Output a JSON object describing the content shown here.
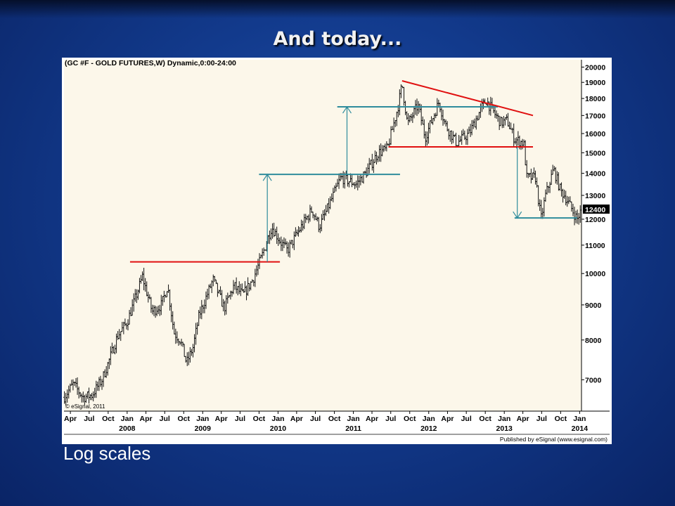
{
  "slide": {
    "title": "And today...",
    "caption": "Log scales"
  },
  "colors": {
    "background": "#123a8c",
    "plot_bg": "#fcf7ea",
    "axis_bg": "#ffffff",
    "bars": "#111111",
    "support_resistance": "#e01010",
    "measured_move": "#2e8c9c"
  },
  "chart_data": {
    "type": "ohlc-bar",
    "title": "(GC #F - GOLD FUTURES,W) Dynamic,0:00-24:00",
    "watermark": "© eSignal, 2011",
    "publisher_note": "Published by eSignal (www.esignal.com)",
    "y_scale": "log",
    "ylim": [
      6300,
      20500
    ],
    "y_ticks": [
      7000,
      8000,
      9000,
      10000,
      11000,
      12000,
      13000,
      14000,
      15000,
      16000,
      17000,
      18000,
      19000,
      20000
    ],
    "last_price_label": "12400",
    "x_range": [
      "2007-03-01",
      "2014-01-10"
    ],
    "x_ticks": [
      {
        "date": "2007-04-01",
        "label": "Apr",
        "year": ""
      },
      {
        "date": "2007-07-01",
        "label": "Jul",
        "year": ""
      },
      {
        "date": "2007-10-01",
        "label": "Oct",
        "year": ""
      },
      {
        "date": "2008-01-01",
        "label": "Jan",
        "year": "2008"
      },
      {
        "date": "2008-04-01",
        "label": "Apr",
        "year": ""
      },
      {
        "date": "2008-07-01",
        "label": "Jul",
        "year": ""
      },
      {
        "date": "2008-10-01",
        "label": "Oct",
        "year": ""
      },
      {
        "date": "2009-01-01",
        "label": "Jan",
        "year": "2009"
      },
      {
        "date": "2009-04-01",
        "label": "Apr",
        "year": ""
      },
      {
        "date": "2009-07-01",
        "label": "Jul",
        "year": ""
      },
      {
        "date": "2009-10-01",
        "label": "Oct",
        "year": ""
      },
      {
        "date": "2010-01-01",
        "label": "Jan",
        "year": "2010"
      },
      {
        "date": "2010-04-01",
        "label": "Apr",
        "year": ""
      },
      {
        "date": "2010-07-01",
        "label": "Jul",
        "year": ""
      },
      {
        "date": "2010-10-01",
        "label": "Oct",
        "year": ""
      },
      {
        "date": "2011-01-01",
        "label": "Jan",
        "year": "2011"
      },
      {
        "date": "2011-04-01",
        "label": "Apr",
        "year": ""
      },
      {
        "date": "2011-07-01",
        "label": "Jul",
        "year": ""
      },
      {
        "date": "2011-10-01",
        "label": "Oct",
        "year": ""
      },
      {
        "date": "2012-01-01",
        "label": "Jan",
        "year": "2012"
      },
      {
        "date": "2012-04-01",
        "label": "Apr",
        "year": ""
      },
      {
        "date": "2012-07-01",
        "label": "Jul",
        "year": ""
      },
      {
        "date": "2012-10-01",
        "label": "Oct",
        "year": ""
      },
      {
        "date": "2013-01-01",
        "label": "Jan",
        "year": "2013"
      },
      {
        "date": "2013-04-01",
        "label": "Apr",
        "year": ""
      },
      {
        "date": "2013-07-01",
        "label": "Jul",
        "year": ""
      },
      {
        "date": "2013-10-01",
        "label": "Oct",
        "year": ""
      },
      {
        "date": "2014-01-01",
        "label": "Jan",
        "year": "2014"
      }
    ],
    "price_path": [
      [
        "2007-03-01",
        6600
      ],
      [
        "2007-04-15",
        6900
      ],
      [
        "2007-06-01",
        6600
      ],
      [
        "2007-07-15",
        6650
      ],
      [
        "2007-09-01",
        7000
      ],
      [
        "2007-10-01",
        7400
      ],
      [
        "2007-11-15",
        8100
      ],
      [
        "2008-01-01",
        8500
      ],
      [
        "2008-02-15",
        9300
      ],
      [
        "2008-03-15",
        9900
      ],
      [
        "2008-05-01",
        8800
      ],
      [
        "2008-06-15",
        9000
      ],
      [
        "2008-07-15",
        9600
      ],
      [
        "2008-08-15",
        8200
      ],
      [
        "2008-09-15",
        8000
      ],
      [
        "2008-10-15",
        7400
      ],
      [
        "2008-11-15",
        7800
      ],
      [
        "2008-12-15",
        8700
      ],
      [
        "2009-02-20",
        9800
      ],
      [
        "2009-04-15",
        8900
      ],
      [
        "2009-06-01",
        9600
      ],
      [
        "2009-07-15",
        9300
      ],
      [
        "2009-09-01",
        9800
      ],
      [
        "2009-10-15",
        10600
      ],
      [
        "2009-12-01",
        11700
      ],
      [
        "2010-01-15",
        11100
      ],
      [
        "2010-02-15",
        10800
      ],
      [
        "2010-04-01",
        11400
      ],
      [
        "2010-06-15",
        12400
      ],
      [
        "2010-07-20",
        11700
      ],
      [
        "2010-09-01",
        12500
      ],
      [
        "2010-11-01",
        13800
      ],
      [
        "2011-01-15",
        13500
      ],
      [
        "2011-03-01",
        14000
      ],
      [
        "2011-05-01",
        15000
      ],
      [
        "2011-06-15",
        15200
      ],
      [
        "2011-08-05",
        17500
      ],
      [
        "2011-08-25",
        18900
      ],
      [
        "2011-09-20",
        16500
      ],
      [
        "2011-11-10",
        17600
      ],
      [
        "2011-12-15",
        15800
      ],
      [
        "2012-02-20",
        17800
      ],
      [
        "2012-03-20",
        16500
      ],
      [
        "2012-05-15",
        15500
      ],
      [
        "2012-07-15",
        16000
      ],
      [
        "2012-09-15",
        17500
      ],
      [
        "2012-10-05",
        17900
      ],
      [
        "2012-11-15",
        17100
      ],
      [
        "2012-12-15",
        16600
      ],
      [
        "2013-01-15",
        16700
      ],
      [
        "2013-02-20",
        15700
      ],
      [
        "2013-04-05",
        15500
      ],
      [
        "2013-04-20",
        13800
      ],
      [
        "2013-06-01",
        13800
      ],
      [
        "2013-06-28",
        12000
      ],
      [
        "2013-07-20",
        13000
      ],
      [
        "2013-08-28",
        14200
      ],
      [
        "2013-10-01",
        13200
      ],
      [
        "2013-10-20",
        13000
      ],
      [
        "2013-12-20",
        12000
      ],
      [
        "2014-01-10",
        12400
      ]
    ],
    "annotations": [
      {
        "kind": "horizontal",
        "color": "support_resistance",
        "from": "2008-01-15",
        "to": "2010-01-10",
        "y": 10400
      },
      {
        "kind": "horizontal",
        "color": "measured_move",
        "from": "2009-10-01",
        "to": "2011-08-15",
        "y": 13950
      },
      {
        "kind": "horizontal",
        "color": "measured_move",
        "from": "2010-10-15",
        "to": "2012-12-01",
        "y": 17500
      },
      {
        "kind": "horizontal",
        "color": "support_resistance",
        "from": "2011-06-20",
        "to": "2013-05-20",
        "y": 15300
      },
      {
        "kind": "horizontal",
        "color": "measured_move",
        "from": "2013-02-20",
        "to": "2013-12-20",
        "y": 12050
      },
      {
        "kind": "trendline",
        "color": "support_resistance",
        "from": [
          "2011-08-25",
          19100
        ],
        "to": [
          "2013-05-20",
          17000
        ]
      },
      {
        "kind": "arrow",
        "color": "measured_move",
        "x": "2009-11-10",
        "from_y": 10400,
        "to_y": 13950
      },
      {
        "kind": "arrow",
        "color": "measured_move",
        "x": "2010-12-01",
        "from_y": 13950,
        "to_y": 17500
      },
      {
        "kind": "arrow",
        "color": "measured_move",
        "x": "2013-03-05",
        "from_y": 15300,
        "to_y": 12050
      }
    ]
  }
}
